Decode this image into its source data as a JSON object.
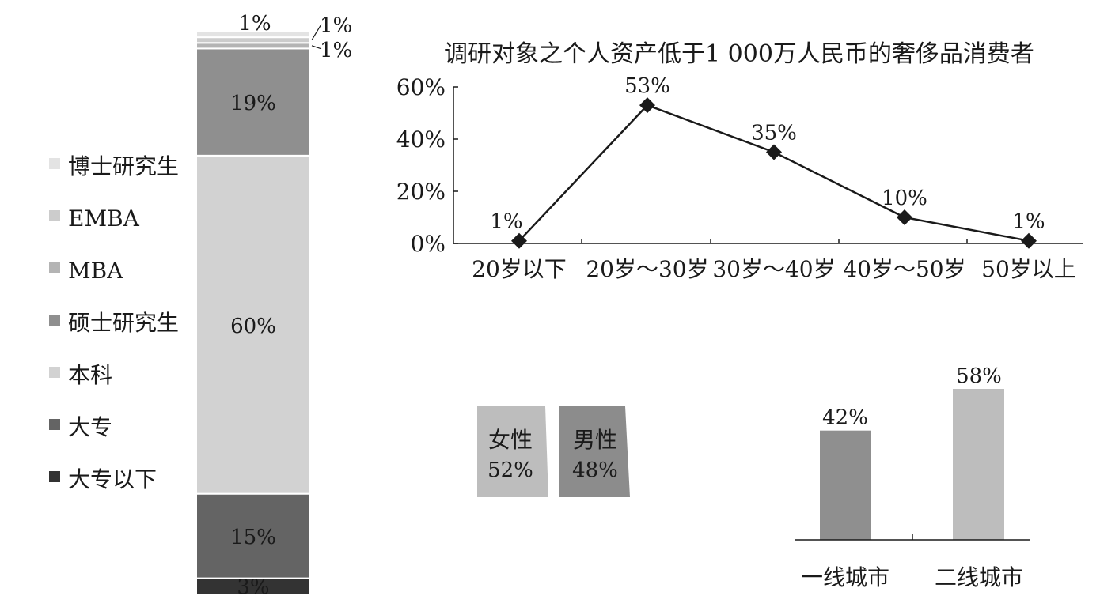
{
  "chart_data": [
    {
      "type": "bar",
      "stacked": true,
      "series": [
        {
          "name": "大专以下",
          "values": [
            3
          ],
          "color": "#333333"
        },
        {
          "name": "大专",
          "values": [
            15
          ],
          "color": "#646464"
        },
        {
          "name": "本科",
          "values": [
            60
          ],
          "color": "#d2d2d2"
        },
        {
          "name": "硕士研究生",
          "values": [
            19
          ],
          "color": "#8f8f8f"
        },
        {
          "name": "MBA",
          "values": [
            1
          ],
          "color": "#b4b4b4"
        },
        {
          "name": "EMBA",
          "values": [
            1
          ],
          "color": "#cccccc"
        },
        {
          "name": "博士研究生",
          "values": [
            1
          ],
          "color": "#e3e3e3"
        }
      ],
      "data_labels": [
        "3%",
        "15%",
        "60%",
        "19%",
        "1%",
        "1%",
        "1%"
      ],
      "legend": "left",
      "legend_order": [
        "博士研究生",
        "EMBA",
        "MBA",
        "硕士研究生",
        "本科",
        "大专",
        "大专以下"
      ]
    },
    {
      "type": "line",
      "title": "调研对象之个人资产低于1 000万人民币的奢侈品消费者",
      "categories": [
        "20岁以下",
        "20岁～30岁",
        "30岁～40岁",
        "40岁～50岁",
        "50岁以上"
      ],
      "values": [
        1,
        53,
        35,
        10,
        1
      ],
      "data_labels": [
        "1%",
        "53%",
        "35%",
        "10%",
        "1%"
      ],
      "yticks": [
        "0%",
        "20%",
        "40%",
        "60%"
      ],
      "ylim": [
        0,
        60
      ],
      "marker": "diamond",
      "color": "#1a1a1a",
      "grid": false
    },
    {
      "type": "bar",
      "categories": [
        "女性",
        "男性"
      ],
      "values": [
        52,
        48
      ],
      "data_labels": [
        "52%",
        "48%"
      ],
      "colors": [
        "#bdbdbd",
        "#8c8c8c"
      ]
    },
    {
      "type": "bar",
      "categories": [
        "一线城市",
        "二线城市"
      ],
      "values": [
        42,
        58
      ],
      "data_labels": [
        "42%",
        "58%"
      ],
      "colors": [
        "#8f8f8f",
        "#bdbdbd"
      ]
    }
  ]
}
